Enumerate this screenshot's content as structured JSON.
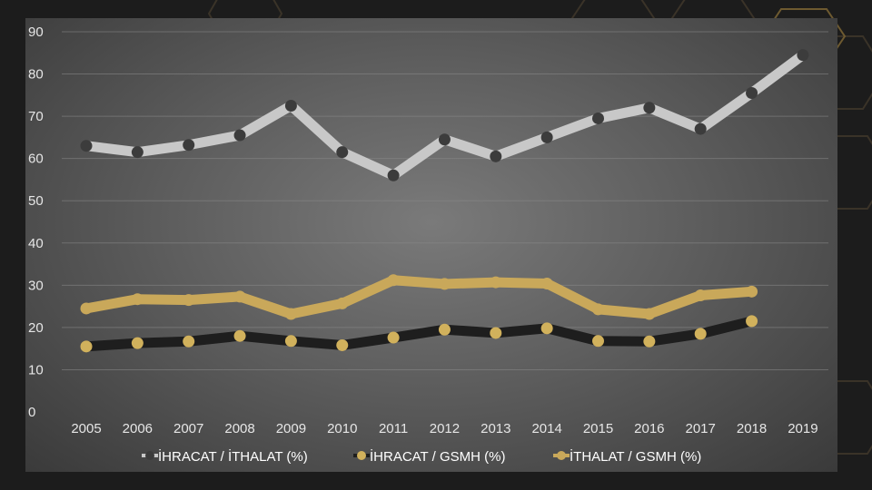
{
  "colors": {
    "background": "#1c1c1c",
    "hex_outline": "#3a3328",
    "hex_accent": "#6e5a30",
    "gridline": "#8a8a8a",
    "tick_label": "#e6e6e6",
    "legend_text": "#ffffff"
  },
  "chart_data": {
    "type": "line",
    "title": "",
    "xlabel": "",
    "ylabel": "",
    "ylim": [
      0,
      90
    ],
    "yticks": [
      "0",
      "10",
      "20",
      "30",
      "40",
      "50",
      "60",
      "70",
      "80",
      "90"
    ],
    "grid": true,
    "legend_position": "bottom",
    "categories": [
      "2005",
      "2006",
      "2007",
      "2008",
      "2009",
      "2010",
      "2011",
      "2012",
      "2013",
      "2014",
      "2015",
      "2016",
      "2017",
      "2018",
      "2019"
    ],
    "series": [
      {
        "name": "İHRACAT / İTHALAT (%)",
        "line_color": "#c8c8c8",
        "marker_color": "#3c3c3c",
        "values": [
          63,
          61.5,
          63.2,
          65.5,
          72.5,
          61.5,
          56,
          64.5,
          60.5,
          65,
          69.5,
          72,
          67,
          75.5,
          84.5
        ]
      },
      {
        "name": "İHRACAT / GSMH (%)",
        "line_color": "#1e1e1e",
        "marker_color": "#d1b15c",
        "values": [
          15.5,
          16.3,
          16.7,
          18,
          16.8,
          15.8,
          17.6,
          19.5,
          18.7,
          19.8,
          16.8,
          16.7,
          18.5,
          21.5,
          null
        ]
      },
      {
        "name": "İTHALAT / GSMH (%)",
        "line_color": "#c9a85a",
        "marker_color": "#c9a85a",
        "values": [
          24.5,
          26.7,
          26.5,
          27.3,
          23.2,
          25.7,
          31.2,
          30.3,
          30.7,
          30.4,
          24.3,
          23.2,
          27.6,
          28.5,
          null
        ]
      }
    ]
  }
}
